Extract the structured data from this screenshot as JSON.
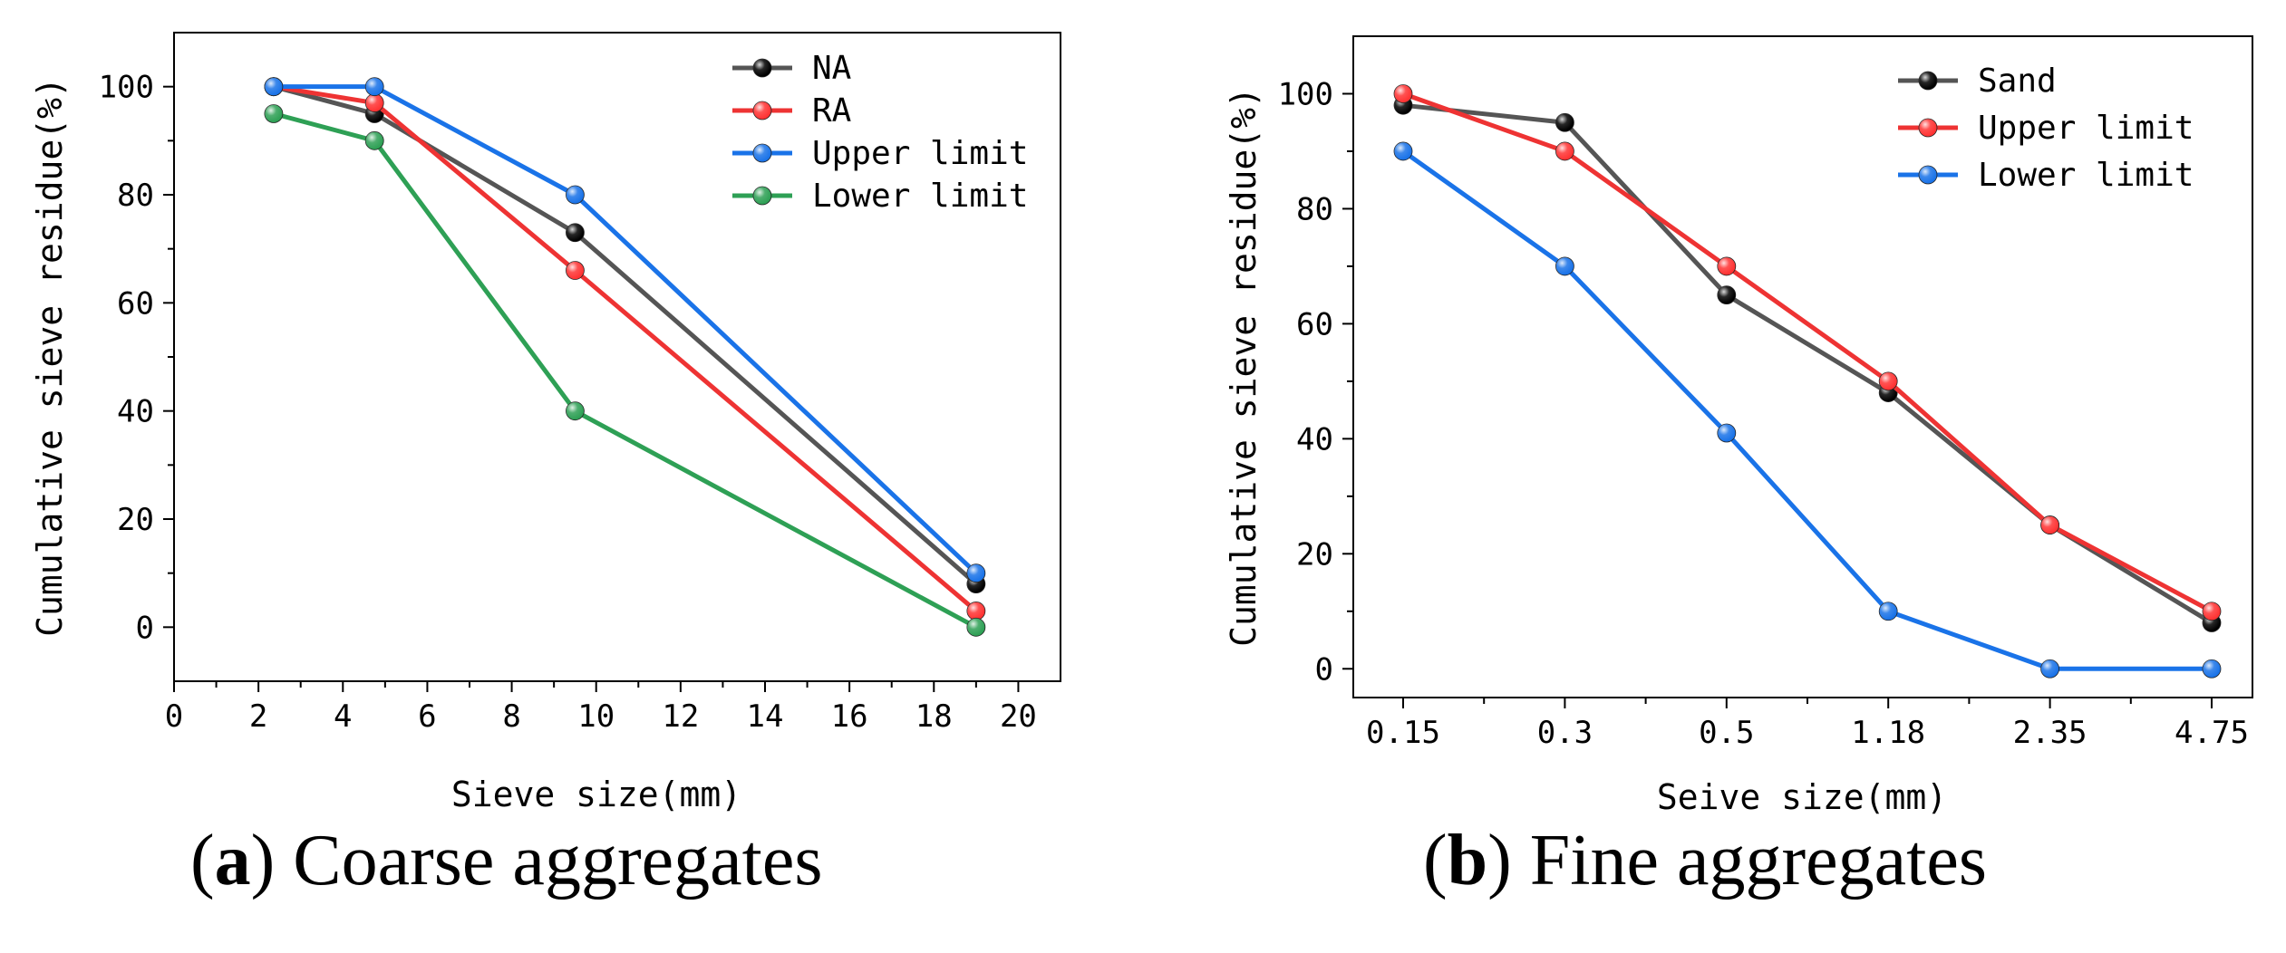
{
  "chart_data": [
    {
      "type": "line",
      "panel": "a",
      "caption_letter": "a",
      "caption_text": "Coarse aggregates",
      "xlabel": "Sieve size(mm)",
      "ylabel": "Cumulative sieve residue(%)",
      "xlim": [
        0,
        21
      ],
      "ylim": [
        -10,
        110
      ],
      "xticks": [
        0,
        2,
        4,
        6,
        8,
        10,
        12,
        14,
        16,
        18,
        20
      ],
      "yticks": [
        0,
        20,
        40,
        60,
        80,
        100
      ],
      "legend_position": "top-right",
      "series": [
        {
          "name": "NA",
          "color": "#000000",
          "line_color": "#555555",
          "x": [
            2.36,
            4.75,
            9.5,
            19
          ],
          "y": [
            100,
            95,
            73,
            8
          ]
        },
        {
          "name": "RA",
          "color": "#ff3333",
          "line_color": "#ee3333",
          "x": [
            2.36,
            4.75,
            9.5,
            19
          ],
          "y": [
            100,
            97,
            66,
            3
          ]
        },
        {
          "name": "Upper limit",
          "color": "#1a73e8",
          "line_color": "#1a73e8",
          "x": [
            2.36,
            4.75,
            9.5,
            19
          ],
          "y": [
            100,
            100,
            80,
            10
          ]
        },
        {
          "name": "Lower limit",
          "color": "#2ea055",
          "line_color": "#2ea055",
          "x": [
            2.36,
            4.75,
            9.5,
            19
          ],
          "y": [
            95,
            90,
            40,
            0
          ]
        }
      ]
    },
    {
      "type": "line",
      "panel": "b",
      "caption_letter": "b",
      "caption_text": "Fine aggregates",
      "xlabel": "Seive size(mm)",
      "ylabel": "Cumulative sieve residue(%)",
      "categories": [
        "0.15",
        "0.3",
        "0.5",
        "1.18",
        "2.35",
        "4.75"
      ],
      "ylim": [
        -5,
        110
      ],
      "yticks": [
        0,
        20,
        40,
        60,
        80,
        100
      ],
      "legend_position": "top-right",
      "series": [
        {
          "name": "Sand",
          "color": "#000000",
          "line_color": "#555555",
          "values": [
            98,
            95,
            65,
            48,
            25,
            8
          ]
        },
        {
          "name": "Upper limit",
          "color": "#ff3333",
          "line_color": "#ee3333",
          "values": [
            100,
            90,
            70,
            50,
            25,
            10
          ]
        },
        {
          "name": "Lower limit",
          "color": "#1a73e8",
          "line_color": "#1a73e8",
          "values": [
            90,
            70,
            41,
            10,
            0,
            0
          ]
        }
      ]
    }
  ]
}
